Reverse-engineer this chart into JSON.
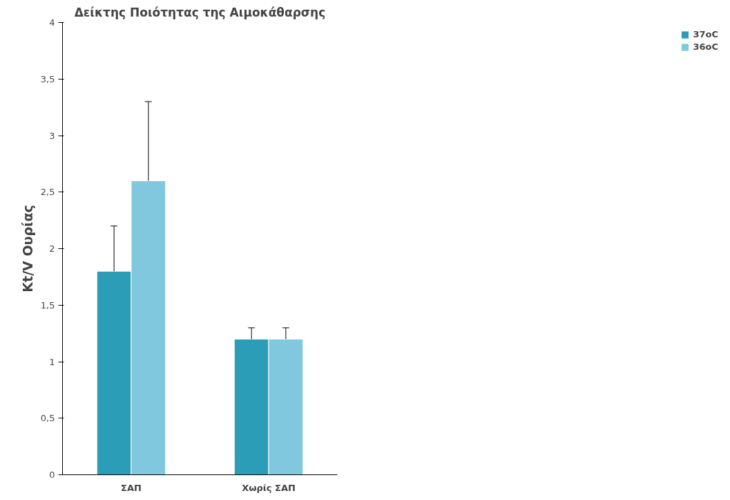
{
  "chart_data": {
    "type": "bar",
    "title": "Δείκτης Ποιότητας της Αιμοκάθαρσης",
    "ylabel": "Kt/V Ουρίας",
    "categories": [
      "ΣΑΠ",
      "Χωρίς ΣΑΠ"
    ],
    "series": [
      {
        "name": "37oC",
        "color": "#2b9db6",
        "values": [
          1.8,
          1.2
        ],
        "errors": [
          [
            1.8,
            2.2
          ],
          [
            1.2,
            1.3
          ]
        ]
      },
      {
        "name": "36oC",
        "color": "#7fc8de",
        "values": [
          2.6,
          1.2
        ],
        "errors": [
          [
            2.6,
            3.3
          ],
          [
            1.2,
            1.3
          ]
        ]
      }
    ],
    "ylim": [
      0,
      4
    ],
    "yticks": [
      0,
      {
        "value": 0.5,
        "label": "0,5"
      },
      1,
      {
        "value": 1.5,
        "label": "1,5"
      },
      2,
      {
        "value": 2.5,
        "label": "2,5"
      },
      3,
      {
        "value": 3.5,
        "label": "3,5"
      },
      4
    ],
    "grid": false,
    "legend": "right"
  }
}
